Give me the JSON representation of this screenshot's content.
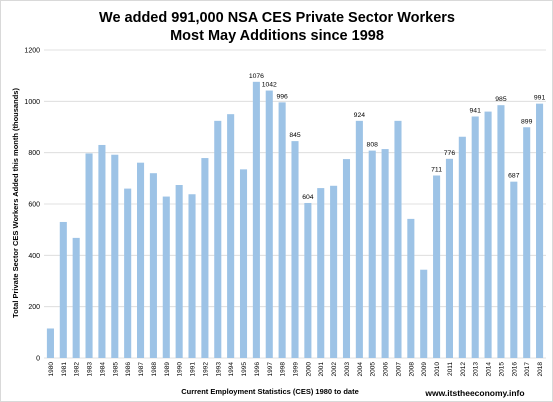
{
  "chart_data": {
    "type": "bar",
    "title": "We added 991,000 NSA CES Private Sector Workers",
    "subtitle": "Most May Additions since 1998",
    "xlabel": "Current Employment Statistics (CES) 1980 to date",
    "ylabel": "Total Private Sector CES Workers Added this month (thousands)",
    "ylim": [
      0,
      1200
    ],
    "yticks": [
      0,
      200,
      400,
      600,
      800,
      1000,
      1200
    ],
    "grid": true,
    "bar_color": "#9dc3e6",
    "grid_color": "#d9d9d9",
    "categories": [
      "1980",
      "1981",
      "1982",
      "1983",
      "1984",
      "1985",
      "1986",
      "1987",
      "1988",
      "1989",
      "1990",
      "1991",
      "1992",
      "1993",
      "1994",
      "1995",
      "1996",
      "1997",
      "1998",
      "1999",
      "2000",
      "2001",
      "2002",
      "2003",
      "2004",
      "2005",
      "2006",
      "2007",
      "2008",
      "2009",
      "2010",
      "2011",
      "2012",
      "2013",
      "2014",
      "2015",
      "2016",
      "2017",
      "2018"
    ],
    "values": [
      115,
      530,
      468,
      797,
      830,
      792,
      660,
      761,
      720,
      629,
      674,
      638,
      779,
      924,
      950,
      735,
      1076,
      1042,
      996,
      845,
      604,
      662,
      671,
      775,
      924,
      808,
      814,
      924,
      542,
      344,
      711,
      776,
      862,
      941,
      960,
      985,
      687,
      899,
      991
    ],
    "data_labels": [
      {
        "index": 16,
        "text": "1076"
      },
      {
        "index": 17,
        "text": "1042"
      },
      {
        "index": 18,
        "text": "996"
      },
      {
        "index": 19,
        "text": "845"
      },
      {
        "index": 20,
        "text": "604"
      },
      {
        "index": 24,
        "text": "924"
      },
      {
        "index": 25,
        "text": "808"
      },
      {
        "index": 30,
        "text": "711"
      },
      {
        "index": 31,
        "text": "776"
      },
      {
        "index": 33,
        "text": "941"
      },
      {
        "index": 35,
        "text": "985"
      },
      {
        "index": 36,
        "text": "687"
      },
      {
        "index": 37,
        "text": "899"
      },
      {
        "index": 38,
        "text": "991"
      }
    ]
  },
  "footer": {
    "website": "www.itstheeconomy.info"
  }
}
